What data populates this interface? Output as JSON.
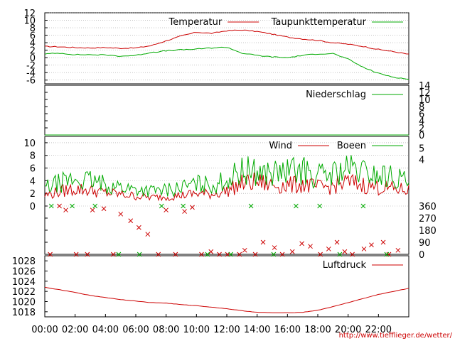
{
  "colors": {
    "red": "#cc0000",
    "green": "#00aa00",
    "grid": "#a0a0a0",
    "axis": "#000000"
  },
  "credit": "http://www.tiefflieger.de/wetter/",
  "chart_data": [
    {
      "type": "line",
      "panel": "temperature",
      "x": [
        "00:00",
        "01:00",
        "02:00",
        "03:00",
        "04:00",
        "05:00",
        "06:00",
        "07:00",
        "08:00",
        "09:00",
        "10:00",
        "11:00",
        "12:00",
        "13:00",
        "14:00",
        "15:00",
        "16:00",
        "17:00",
        "18:00",
        "19:00",
        "20:00",
        "21:00",
        "22:00",
        "23:00",
        "23:59"
      ],
      "x_ticks": [
        "00:00",
        "02:00",
        "04:00",
        "06:00",
        "08:00",
        "10:00",
        "12:00",
        "14:00",
        "16:00",
        "18:00",
        "20:00",
        "22:00"
      ],
      "y_ticks": [
        -6,
        -4,
        -2,
        0,
        2,
        4,
        6,
        8,
        10,
        12
      ],
      "ylim": [
        -7,
        12
      ],
      "grid": true,
      "legend": "top-right",
      "series": [
        {
          "name": "Temperatur",
          "color": "#cc0000",
          "values": [
            3.0,
            2.9,
            2.7,
            2.6,
            2.7,
            2.5,
            2.6,
            3.2,
            4.5,
            5.8,
            6.8,
            6.5,
            7.2,
            7.4,
            7.0,
            6.3,
            5.5,
            5.0,
            4.6,
            4.0,
            3.6,
            3.0,
            2.2,
            1.6,
            0.9
          ]
        },
        {
          "name": "Taupunkttemperatur",
          "color": "#00aa00",
          "values": [
            1.0,
            1.2,
            0.8,
            0.8,
            0.7,
            0.4,
            0.6,
            1.4,
            1.8,
            2.1,
            2.3,
            2.6,
            2.8,
            1.2,
            0.6,
            0.2,
            0.0,
            0.6,
            1.0,
            1.1,
            -0.4,
            -2.6,
            -4.2,
            -5.2,
            -5.8
          ]
        }
      ]
    },
    {
      "type": "line",
      "panel": "precipitation",
      "y_ticks": [
        0,
        2,
        4,
        6,
        8,
        10,
        12,
        14
      ],
      "ylim": [
        0,
        14
      ],
      "legend": "top-right",
      "series": [
        {
          "name": "Niederschlag",
          "color": "#00aa00",
          "values": [
            0
          ]
        }
      ]
    },
    {
      "type": "line",
      "panel": "wind",
      "x": [
        "00:00",
        "01:00",
        "02:00",
        "03:00",
        "04:00",
        "05:00",
        "06:00",
        "07:00",
        "08:00",
        "09:00",
        "10:00",
        "11:00",
        "12:00",
        "13:00",
        "14:00",
        "15:00",
        "16:00",
        "17:00",
        "18:00",
        "19:00",
        "20:00",
        "21:00",
        "22:00",
        "23:00",
        "23:59"
      ],
      "y_ticks": [
        0,
        2,
        4,
        6,
        8,
        10
      ],
      "ylim": [
        0,
        11
      ],
      "grid": true,
      "legend": "top-right",
      "y2_ticks": [
        4,
        5
      ],
      "y2lim": [
        0,
        6
      ],
      "series": [
        {
          "name": "Wind",
          "color": "#cc0000",
          "values": [
            1.6,
            2.2,
            2.6,
            2.4,
            2.0,
            1.8,
            1.5,
            1.3,
            1.4,
            1.6,
            1.9,
            1.8,
            2.3,
            3.4,
            3.6,
            3.2,
            3.1,
            3.3,
            2.8,
            3.0,
            3.6,
            3.2,
            2.8,
            2.6,
            2.4
          ]
        },
        {
          "name": "Boeen",
          "color": "#00aa00",
          "values": [
            2.7,
            3.5,
            4.0,
            3.8,
            3.2,
            2.9,
            2.5,
            2.3,
            2.4,
            2.8,
            3.3,
            3.2,
            3.9,
            5.3,
            5.2,
            4.9,
            5.1,
            5.4,
            4.5,
            4.9,
            5.6,
            5.1,
            4.6,
            4.4,
            3.6
          ]
        }
      ]
    },
    {
      "type": "scatter",
      "panel": "wind-direction",
      "y_ticks": [
        0,
        90,
        180,
        270,
        360
      ],
      "ylim": [
        0,
        360
      ],
      "series": [
        {
          "name": "",
          "color": "#cc0000",
          "values": [
            0,
            360,
            330,
            0,
            0,
            330,
            340,
            0,
            300,
            250,
            200,
            150,
            0,
            330,
            0,
            320,
            350,
            0,
            20,
            0,
            0,
            0,
            30,
            0,
            90,
            50,
            0,
            20,
            80,
            60,
            0,
            40,
            90,
            20,
            0,
            40,
            70,
            90,
            0,
            30
          ]
        },
        {
          "name": "",
          "color": "#00aa00",
          "values": [
            360,
            360,
            360,
            0,
            0,
            360,
            360,
            0,
            0,
            360,
            0,
            360,
            360,
            0,
            360,
            0
          ]
        }
      ]
    },
    {
      "type": "line",
      "panel": "pressure",
      "x": [
        "00:00",
        "01:00",
        "02:00",
        "03:00",
        "04:00",
        "05:00",
        "06:00",
        "07:00",
        "08:00",
        "09:00",
        "10:00",
        "11:00",
        "12:00",
        "13:00",
        "14:00",
        "15:00",
        "16:00",
        "17:00",
        "18:00",
        "19:00",
        "20:00",
        "21:00",
        "22:00",
        "23:00",
        "23:59"
      ],
      "y_ticks": [
        1018,
        1020,
        1022,
        1024,
        1026,
        1028
      ],
      "ylim": [
        1017,
        1029
      ],
      "legend": "top-right",
      "series": [
        {
          "name": "Luftdruck",
          "color": "#cc0000",
          "values": [
            1022.8,
            1022.3,
            1021.8,
            1021.2,
            1020.8,
            1020.4,
            1020.1,
            1019.8,
            1019.7,
            1019.4,
            1019.2,
            1018.9,
            1018.6,
            1018.2,
            1017.9,
            1017.8,
            1017.8,
            1017.9,
            1018.3,
            1019.0,
            1019.8,
            1020.6,
            1021.4,
            1022.0,
            1022.6
          ]
        }
      ]
    }
  ]
}
